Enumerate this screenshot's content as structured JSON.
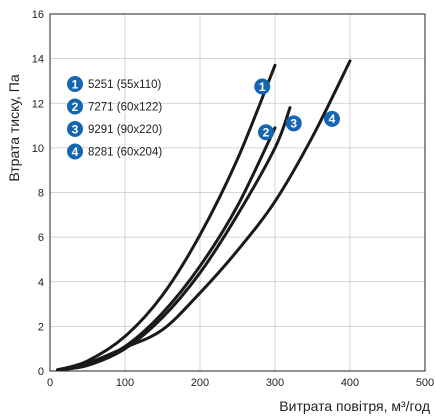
{
  "chart_data": {
    "type": "line",
    "xlabel": "Витрата повітря, м³/год",
    "ylabel": "Втрата тиску, Па",
    "xlim": [
      0,
      500
    ],
    "ylim": [
      0,
      16
    ],
    "x_ticks": [
      0,
      100,
      200,
      300,
      400,
      500
    ],
    "y_ticks": [
      0,
      2,
      4,
      6,
      8,
      10,
      12,
      14,
      16
    ],
    "grid": true,
    "legend_position": "top-left",
    "line_color": "#1a1a1a",
    "badge_color": "#1565b0",
    "series": [
      {
        "badge": "1",
        "name": "5251 (55x110)",
        "points": [
          [
            10,
            0.05
          ],
          [
            50,
            0.45
          ],
          [
            100,
            1.55
          ],
          [
            150,
            3.4
          ],
          [
            200,
            6.1
          ],
          [
            250,
            9.5
          ],
          [
            300,
            13.7
          ]
        ],
        "badge_at": [
          283,
          12.75
        ]
      },
      {
        "badge": "2",
        "name": "7271 (60x122)",
        "points": [
          [
            10,
            0.05
          ],
          [
            50,
            0.3
          ],
          [
            100,
            1.1
          ],
          [
            150,
            2.6
          ],
          [
            200,
            4.7
          ],
          [
            250,
            7.4
          ],
          [
            300,
            10.9
          ]
        ],
        "badge_at": [
          288,
          10.7
        ]
      },
      {
        "badge": "3",
        "name": "9291 (90x220)",
        "points": [
          [
            10,
            0.05
          ],
          [
            50,
            0.25
          ],
          [
            100,
            1.0
          ],
          [
            150,
            2.4
          ],
          [
            200,
            4.4
          ],
          [
            250,
            7.0
          ],
          [
            300,
            10.0
          ],
          [
            320,
            11.8
          ]
        ],
        "badge_at": [
          325,
          11.1
        ]
      },
      {
        "badge": "4",
        "name": "8281 (60x204)",
        "points": [
          [
            10,
            0.05
          ],
          [
            50,
            0.35
          ],
          [
            100,
            1.05
          ],
          [
            150,
            1.85
          ],
          [
            200,
            3.5
          ],
          [
            250,
            5.4
          ],
          [
            300,
            7.6
          ],
          [
            350,
            10.5
          ],
          [
            400,
            13.9
          ]
        ],
        "badge_at": [
          376,
          11.3
        ]
      }
    ]
  }
}
